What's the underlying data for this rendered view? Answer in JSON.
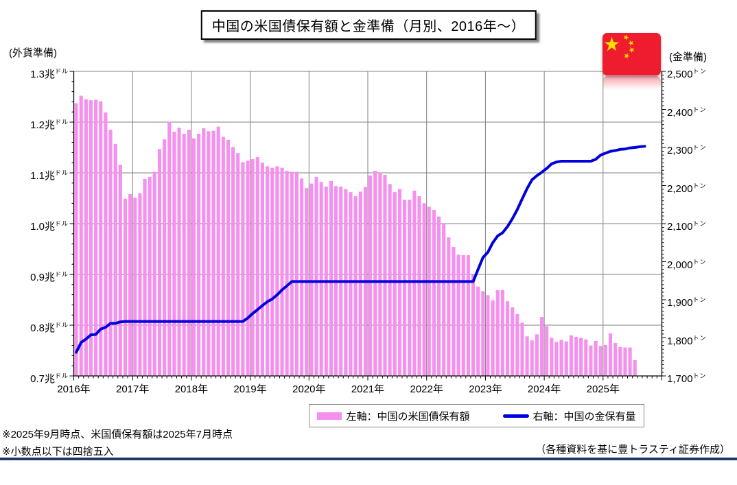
{
  "title": "中国の米国債保有額と金準備（月別、2016年～）",
  "left_axis_header": "(外貨準備)",
  "right_axis_header": "(金準備)",
  "legend": {
    "bar_label": "左軸：中国の米国債保有額",
    "line_label": "右軸：中国の金保有量"
  },
  "footnotes": [
    "※2025年9月時点、米国債保有額は2025年7月時点",
    "※小数点以下は四捨五入"
  ],
  "source": "（各種資料を基に豊トラスティ証券作成）",
  "colors": {
    "bar": "#F590EE",
    "line": "#0000DD",
    "grid": "#808080",
    "axis": "#000000",
    "bottom_rule": "#1F3864",
    "flag_red": "#EE1C2E",
    "flag_yellow": "#FFDE00"
  },
  "chart_data": {
    "type": "bar+line combo, dual axis, monthly",
    "x_axis": {
      "labels": [
        "2016年",
        "2017年",
        "2018年",
        "2019年",
        "2020年",
        "2021年",
        "2022年",
        "2023年",
        "2024年",
        "2025年"
      ],
      "months_shown": 120,
      "start": "2016-01",
      "end": "2025-12"
    },
    "left_axis": {
      "header": "(外貨準備)",
      "ticks": [
        "1.3",
        "1.2",
        "1.1",
        "1.0",
        "0.9",
        "0.8",
        "0.7"
      ],
      "suffix_main": "兆",
      "suffix_small": "ドル",
      "range": [
        0.7,
        1.3
      ],
      "minor_step": 0.02
    },
    "right_axis": {
      "header": "(金準備)",
      "ticks": [
        "2,500",
        "2,400",
        "2,300",
        "2,200",
        "2,100",
        "2,000",
        "1,900",
        "1,800",
        "1,700"
      ],
      "suffix_small": "トン",
      "range": [
        1700,
        2500
      ],
      "minor_step": 10
    },
    "series": [
      {
        "name": "左軸：中国の米国債保有額",
        "type": "bar",
        "axis": "left",
        "unit": "billion USD (axis shown in 兆ドル)",
        "start": "2016-01",
        "end": "2025-07",
        "values": [
          1237,
          1252,
          1245,
          1243,
          1244,
          1241,
          1219,
          1185,
          1157,
          1116,
          1049,
          1058,
          1051,
          1060,
          1088,
          1092,
          1102,
          1147,
          1166,
          1201,
          1181,
          1189,
          1177,
          1185,
          1168,
          1177,
          1188,
          1182,
          1183,
          1191,
          1171,
          1165,
          1151,
          1139,
          1121,
          1124,
          1127,
          1131,
          1120,
          1113,
          1110,
          1113,
          1110,
          1104,
          1102,
          1102,
          1089,
          1070,
          1079,
          1092,
          1082,
          1073,
          1084,
          1074,
          1073,
          1068,
          1062,
          1054,
          1063,
          1072,
          1095,
          1104,
          1100,
          1096,
          1078,
          1062,
          1068,
          1047,
          1047,
          1065,
          1054,
          1040,
          1033,
          1027,
          1014,
          1000,
          973,
          954,
          939,
          938,
          938,
          899,
          876,
          867,
          859,
          849,
          869,
          869,
          847,
          835,
          822,
          805,
          778,
          770,
          782,
          816,
          798,
          775,
          767,
          771,
          768,
          780,
          777,
          775,
          772,
          760,
          769,
          759,
          761,
          784,
          765,
          757,
          756,
          756,
          731
        ]
      },
      {
        "name": "右軸：中国の金保有量",
        "type": "line",
        "axis": "right",
        "unit": "トン",
        "start": "2016-01",
        "end": "2025-09",
        "values": [
          1762,
          1788,
          1797,
          1808,
          1809,
          1823,
          1828,
          1838,
          1838,
          1842,
          1843,
          1843,
          1843,
          1843,
          1843,
          1843,
          1843,
          1843,
          1843,
          1843,
          1843,
          1843,
          1843,
          1843,
          1843,
          1843,
          1843,
          1843,
          1843,
          1843,
          1843,
          1843,
          1843,
          1843,
          1843,
          1852,
          1864,
          1874,
          1885,
          1895,
          1902,
          1913,
          1926,
          1937,
          1948,
          1948,
          1948,
          1948,
          1948,
          1948,
          1948,
          1948,
          1948,
          1948,
          1948,
          1948,
          1948,
          1948,
          1948,
          1948,
          1948,
          1948,
          1948,
          1948,
          1948,
          1948,
          1948,
          1948,
          1948,
          1948,
          1948,
          1948,
          1948,
          1948,
          1948,
          1948,
          1948,
          1948,
          1948,
          1948,
          1948,
          1948,
          1980,
          2011,
          2025,
          2050,
          2068,
          2076,
          2092,
          2113,
          2137,
          2165,
          2192,
          2215,
          2226,
          2235,
          2245,
          2257,
          2262,
          2264,
          2264,
          2264,
          2264,
          2264,
          2264,
          2264,
          2269,
          2280,
          2285,
          2290,
          2292,
          2295,
          2296,
          2299,
          2300,
          2302,
          2303
        ]
      }
    ]
  }
}
